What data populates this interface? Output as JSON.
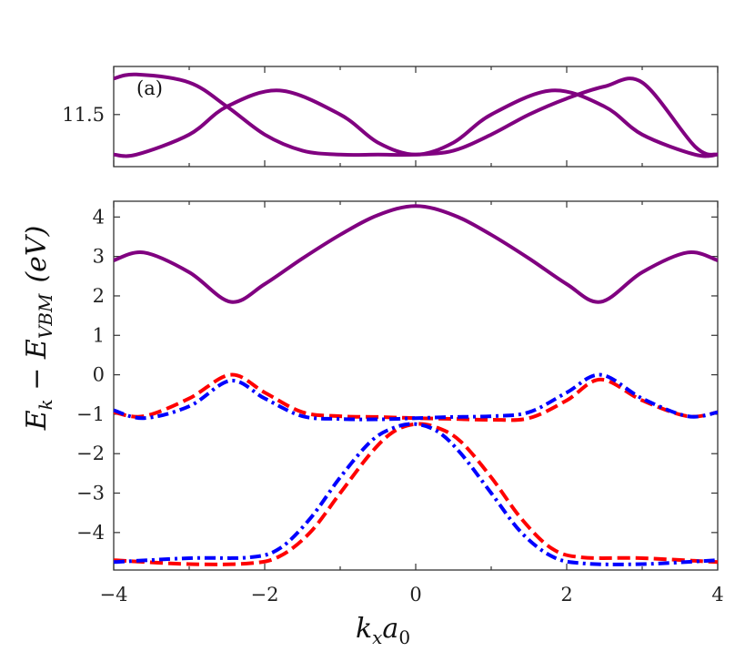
{
  "chart_data": {
    "type": "line",
    "panel_label": "(a)",
    "xlabel": "k_x a_0",
    "ylabel": "E_k − E_VBM (eV)",
    "xlabel_parts": {
      "k": "k",
      "k_sub": "x",
      "a": "a",
      "a_sub": "0"
    },
    "ylabel_parts": {
      "e1": "E",
      "e1_sub": "k",
      "minus": " − ",
      "e2": "E",
      "e2_sub": "VBM",
      "unit": "(eV)"
    },
    "xlim": [
      -4,
      4
    ],
    "x_ticks": [
      -4,
      -2,
      0,
      2,
      4
    ],
    "x_tick_labels": [
      "−4",
      "−2",
      "0",
      "2",
      "4"
    ],
    "panels": [
      {
        "name": "upper",
        "ylim": [
          11.37,
          11.62
        ],
        "y_ticks": [
          11.5
        ],
        "y_tick_labels": [
          "11.5"
        ],
        "series": [
          {
            "name": "conduction band A",
            "color": "#800080",
            "style": "solid",
            "x": [
              -4,
              -3.7,
              -3,
              -2.5,
              -2,
              -1.5,
              -1,
              -0.5,
              0,
              0.5,
              1,
              1.5,
              2,
              2.5,
              3,
              3.7,
              4
            ],
            "y": [
              11.59,
              11.6,
              11.58,
              11.52,
              11.45,
              11.41,
              11.4,
              11.4,
              11.4,
              11.41,
              11.45,
              11.5,
              11.54,
              11.57,
              11.58,
              11.42,
              11.4
            ]
          },
          {
            "name": "conduction band B",
            "color": "#800080",
            "style": "solid",
            "x": [
              -4,
              -3.7,
              -3,
              -2.5,
              -1.8,
              -1,
              -0.5,
              0,
              0.5,
              1,
              1.8,
              2.5,
              3,
              3.7,
              4
            ],
            "y": [
              11.4,
              11.4,
              11.45,
              11.52,
              11.56,
              11.5,
              11.43,
              11.4,
              11.43,
              11.5,
              11.56,
              11.52,
              11.45,
              11.4,
              11.4
            ]
          }
        ]
      },
      {
        "name": "lower",
        "ylim": [
          -4.95,
          4.4
        ],
        "y_ticks": [
          -4,
          -3,
          -2,
          -1,
          0,
          1,
          2,
          3,
          4
        ],
        "y_tick_labels": [
          "−4",
          "−3",
          "−2",
          "−1",
          "0",
          "1",
          "2",
          "3",
          "4"
        ],
        "series": [
          {
            "name": "conduction band",
            "color": "#800080",
            "style": "solid",
            "x": [
              -4,
              -3.6,
              -3,
              -2.45,
              -2,
              -1.5,
              -1,
              -0.5,
              0,
              0.5,
              1,
              1.5,
              2,
              2.45,
              3,
              3.6,
              4
            ],
            "y": [
              2.9,
              3.1,
              2.6,
              1.85,
              2.3,
              2.95,
              3.55,
              4.05,
              4.28,
              4.05,
              3.55,
              2.95,
              2.3,
              1.85,
              2.6,
              3.1,
              2.9
            ]
          },
          {
            "name": "valence upper (spin up)",
            "color": "#ff0000",
            "style": "dashed",
            "x": [
              -4,
              -3.6,
              -3,
              -2.45,
              -2,
              -1.5,
              -1,
              -0.5,
              0,
              0.5,
              1,
              1.5,
              2,
              2.45,
              3,
              3.6,
              4
            ],
            "y": [
              -0.95,
              -1.05,
              -0.6,
              0.0,
              -0.45,
              -0.95,
              -1.05,
              -1.07,
              -1.1,
              -1.12,
              -1.14,
              -1.1,
              -0.65,
              -0.12,
              -0.65,
              -1.05,
              -0.95
            ]
          },
          {
            "name": "valence upper (spin down)",
            "color": "#0000ff",
            "style": "dashdot",
            "x": [
              -4,
              -3.6,
              -3,
              -2.45,
              -2,
              -1.5,
              -1,
              -0.5,
              0,
              0.5,
              1,
              1.5,
              2,
              2.45,
              3,
              3.6,
              4
            ],
            "y": [
              -0.9,
              -1.1,
              -0.8,
              -0.15,
              -0.6,
              -1.05,
              -1.12,
              -1.13,
              -1.1,
              -1.07,
              -1.05,
              -0.95,
              -0.45,
              0.0,
              -0.6,
              -1.05,
              -0.95
            ]
          },
          {
            "name": "valence lower (spin up)",
            "color": "#ff0000",
            "style": "dashed",
            "x": [
              -4,
              -3,
              -2.2,
              -1.8,
              -1.4,
              -1,
              -0.6,
              -0.3,
              0,
              0.3,
              0.6,
              1,
              1.4,
              1.8,
              2.2,
              3,
              4
            ],
            "y": [
              -4.7,
              -4.8,
              -4.78,
              -4.6,
              -4.0,
              -3.0,
              -2.0,
              -1.45,
              -1.25,
              -1.35,
              -1.7,
              -2.6,
              -3.65,
              -4.4,
              -4.63,
              -4.65,
              -4.75
            ]
          },
          {
            "name": "valence lower (spin down)",
            "color": "#0000ff",
            "style": "dashdot",
            "x": [
              -4,
              -3,
              -2.2,
              -1.8,
              -1.4,
              -1,
              -0.6,
              -0.3,
              0,
              0.3,
              0.6,
              1,
              1.4,
              1.8,
              2.2,
              3,
              4
            ],
            "y": [
              -4.75,
              -4.65,
              -4.63,
              -4.4,
              -3.65,
              -2.6,
              -1.7,
              -1.35,
              -1.25,
              -1.45,
              -2.0,
              -3.0,
              -4.0,
              -4.6,
              -4.78,
              -4.8,
              -4.7
            ]
          }
        ]
      }
    ]
  }
}
